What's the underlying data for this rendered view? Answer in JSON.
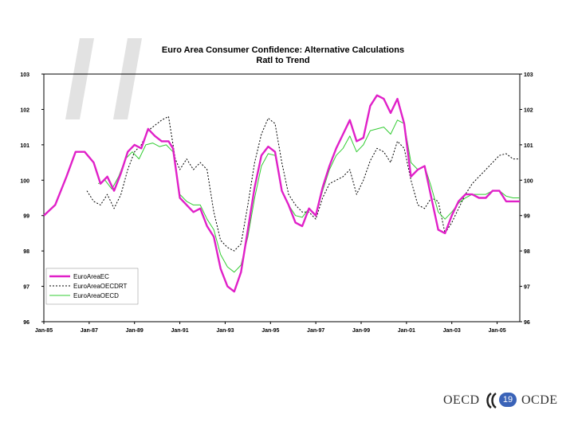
{
  "footer": {
    "left_word": "OECD",
    "right_word": "OCDE",
    "page_number": "19"
  },
  "chart_data": {
    "type": "line",
    "title": "Euro Area Consumer Confidence: Alternative Calculations",
    "subtitle": "Ratl to Trend",
    "xlabel": "",
    "ylabel": "",
    "ylim": [
      96,
      103
    ],
    "y_ticks": [
      "103",
      "102",
      "101",
      "100",
      "99",
      "98",
      "97",
      "96"
    ],
    "x_tick_labels": [
      "Jan-85",
      "Jan-87",
      "Jan-89",
      "Jan-91",
      "Jan-93",
      "Jan-95",
      "Jan-97",
      "Jan-99",
      "Jan-01",
      "Jan-03",
      "Jan-05"
    ],
    "x_range": [
      1985.0,
      2006.0
    ],
    "grid": false,
    "legend_position": "bottom-left",
    "series": [
      {
        "name": "EuroAreaEC",
        "color": "#e020c8",
        "style": "solid",
        "x": [
          1985.0,
          1985.5,
          1986.0,
          1986.4,
          1986.8,
          1987.2,
          1987.5,
          1987.8,
          1988.1,
          1988.4,
          1988.7,
          1989.0,
          1989.3,
          1989.6,
          1989.9,
          1990.2,
          1990.5,
          1990.7,
          1991.0,
          1991.3,
          1991.6,
          1991.9,
          1992.2,
          1992.5,
          1992.8,
          1993.1,
          1993.4,
          1993.7,
          1994.0,
          1994.3,
          1994.6,
          1994.9,
          1995.2,
          1995.5,
          1995.8,
          1996.1,
          1996.4,
          1996.7,
          1997.0,
          1997.3,
          1997.6,
          1997.9,
          1998.2,
          1998.5,
          1998.8,
          1999.1,
          1999.4,
          1999.7,
          2000.0,
          2000.3,
          2000.6,
          2000.9,
          2001.2,
          2001.5,
          2001.8,
          2002.1,
          2002.4,
          2002.7,
          2003.0,
          2003.3,
          2003.6,
          2003.9,
          2004.2,
          2004.5,
          2004.8,
          2005.1,
          2005.4,
          2005.7,
          2006.0
        ],
        "values": [
          99.0,
          99.3,
          100.1,
          100.8,
          100.8,
          100.5,
          99.9,
          100.1,
          99.7,
          100.2,
          100.8,
          101.0,
          100.9,
          101.45,
          101.25,
          101.1,
          101.1,
          100.9,
          99.5,
          99.3,
          99.1,
          99.2,
          98.7,
          98.4,
          97.5,
          97.0,
          96.85,
          97.4,
          98.6,
          99.8,
          100.7,
          100.95,
          100.8,
          99.7,
          99.3,
          98.8,
          98.7,
          99.2,
          99.0,
          99.8,
          100.4,
          100.9,
          101.3,
          101.7,
          101.1,
          101.2,
          102.1,
          102.4,
          102.3,
          101.9,
          102.3,
          101.6,
          100.1,
          100.3,
          100.4,
          99.5,
          98.6,
          98.5,
          99.0,
          99.4,
          99.6,
          99.6,
          99.5,
          99.5,
          99.7,
          99.7,
          99.4,
          99.4,
          99.4
        ]
      },
      {
        "name": "EuroAreaOECDRT",
        "color": "#000000",
        "style": "dashed",
        "x": [
          1986.9,
          1987.2,
          1987.5,
          1987.8,
          1988.1,
          1988.4,
          1988.7,
          1989.0,
          1989.3,
          1989.6,
          1989.9,
          1990.2,
          1990.5,
          1990.8,
          1991.0,
          1991.3,
          1991.6,
          1991.9,
          1992.2,
          1992.5,
          1992.8,
          1993.1,
          1993.4,
          1993.7,
          1994.0,
          1994.3,
          1994.6,
          1994.9,
          1995.2,
          1995.5,
          1995.8,
          1996.1,
          1996.4,
          1996.7,
          1997.0,
          1997.3,
          1997.6,
          1997.9,
          1998.2,
          1998.5,
          1998.8,
          1999.1,
          1999.4,
          1999.7,
          2000.0,
          2000.3,
          2000.6,
          2000.9,
          2001.2,
          2001.5,
          2001.8,
          2002.1,
          2002.4,
          2002.7,
          2003.0,
          2003.3,
          2003.6,
          2003.9,
          2004.2,
          2004.5,
          2004.8,
          2005.1,
          2005.4,
          2005.7,
          2006.0
        ],
        "values": [
          99.7,
          99.4,
          99.3,
          99.6,
          99.2,
          99.6,
          100.3,
          100.8,
          101.0,
          101.4,
          101.55,
          101.7,
          101.8,
          100.6,
          100.3,
          100.6,
          100.3,
          100.5,
          100.3,
          99.1,
          98.3,
          98.1,
          98.0,
          98.2,
          99.3,
          100.5,
          101.3,
          101.75,
          101.6,
          100.5,
          99.6,
          99.3,
          99.1,
          99.1,
          98.9,
          99.5,
          99.9,
          100.0,
          100.1,
          100.3,
          99.6,
          100.0,
          100.55,
          100.9,
          100.8,
          100.5,
          101.1,
          100.9,
          100.0,
          99.3,
          99.2,
          99.5,
          99.4,
          98.5,
          98.8,
          99.2,
          99.6,
          99.9,
          100.1,
          100.3,
          100.5,
          100.7,
          100.75,
          100.6,
          100.6
        ]
      },
      {
        "name": "EuroAreaOECD",
        "color": "#33cc33",
        "style": "solid",
        "x": [
          1987.4,
          1987.7,
          1988.0,
          1988.3,
          1988.6,
          1988.9,
          1989.2,
          1989.5,
          1989.8,
          1990.1,
          1990.4,
          1990.7,
          1991.0,
          1991.3,
          1991.6,
          1991.9,
          1992.2,
          1992.5,
          1992.8,
          1993.1,
          1993.4,
          1993.7,
          1994.0,
          1994.3,
          1994.6,
          1994.9,
          1995.2,
          1995.5,
          1995.8,
          1996.1,
          1996.4,
          1996.7,
          1997.0,
          1997.3,
          1997.6,
          1997.9,
          1998.2,
          1998.5,
          1998.8,
          1999.1,
          1999.4,
          1999.7,
          2000.0,
          2000.3,
          2000.6,
          2000.9,
          2001.2,
          2001.5,
          2001.8,
          2002.1,
          2002.4,
          2002.7,
          2003.0,
          2003.3,
          2003.6,
          2003.9,
          2004.2,
          2004.5,
          2004.8,
          2005.1,
          2005.4,
          2005.7,
          2006.0
        ],
        "values": [
          99.9,
          100.0,
          99.75,
          100.1,
          100.6,
          100.8,
          100.6,
          101.0,
          101.05,
          100.95,
          101.0,
          100.8,
          99.6,
          99.4,
          99.3,
          99.3,
          98.9,
          98.6,
          97.9,
          97.55,
          97.4,
          97.6,
          98.4,
          99.5,
          100.4,
          100.75,
          100.7,
          99.7,
          99.3,
          99.0,
          98.95,
          99.2,
          99.0,
          99.7,
          100.3,
          100.7,
          100.9,
          101.25,
          100.8,
          101.0,
          101.4,
          101.45,
          101.5,
          101.3,
          101.7,
          101.6,
          100.5,
          100.3,
          100.4,
          99.8,
          99.1,
          98.9,
          99.1,
          99.35,
          99.5,
          99.6,
          99.6,
          99.6,
          99.7,
          99.7,
          99.55,
          99.5,
          99.5
        ]
      }
    ]
  }
}
